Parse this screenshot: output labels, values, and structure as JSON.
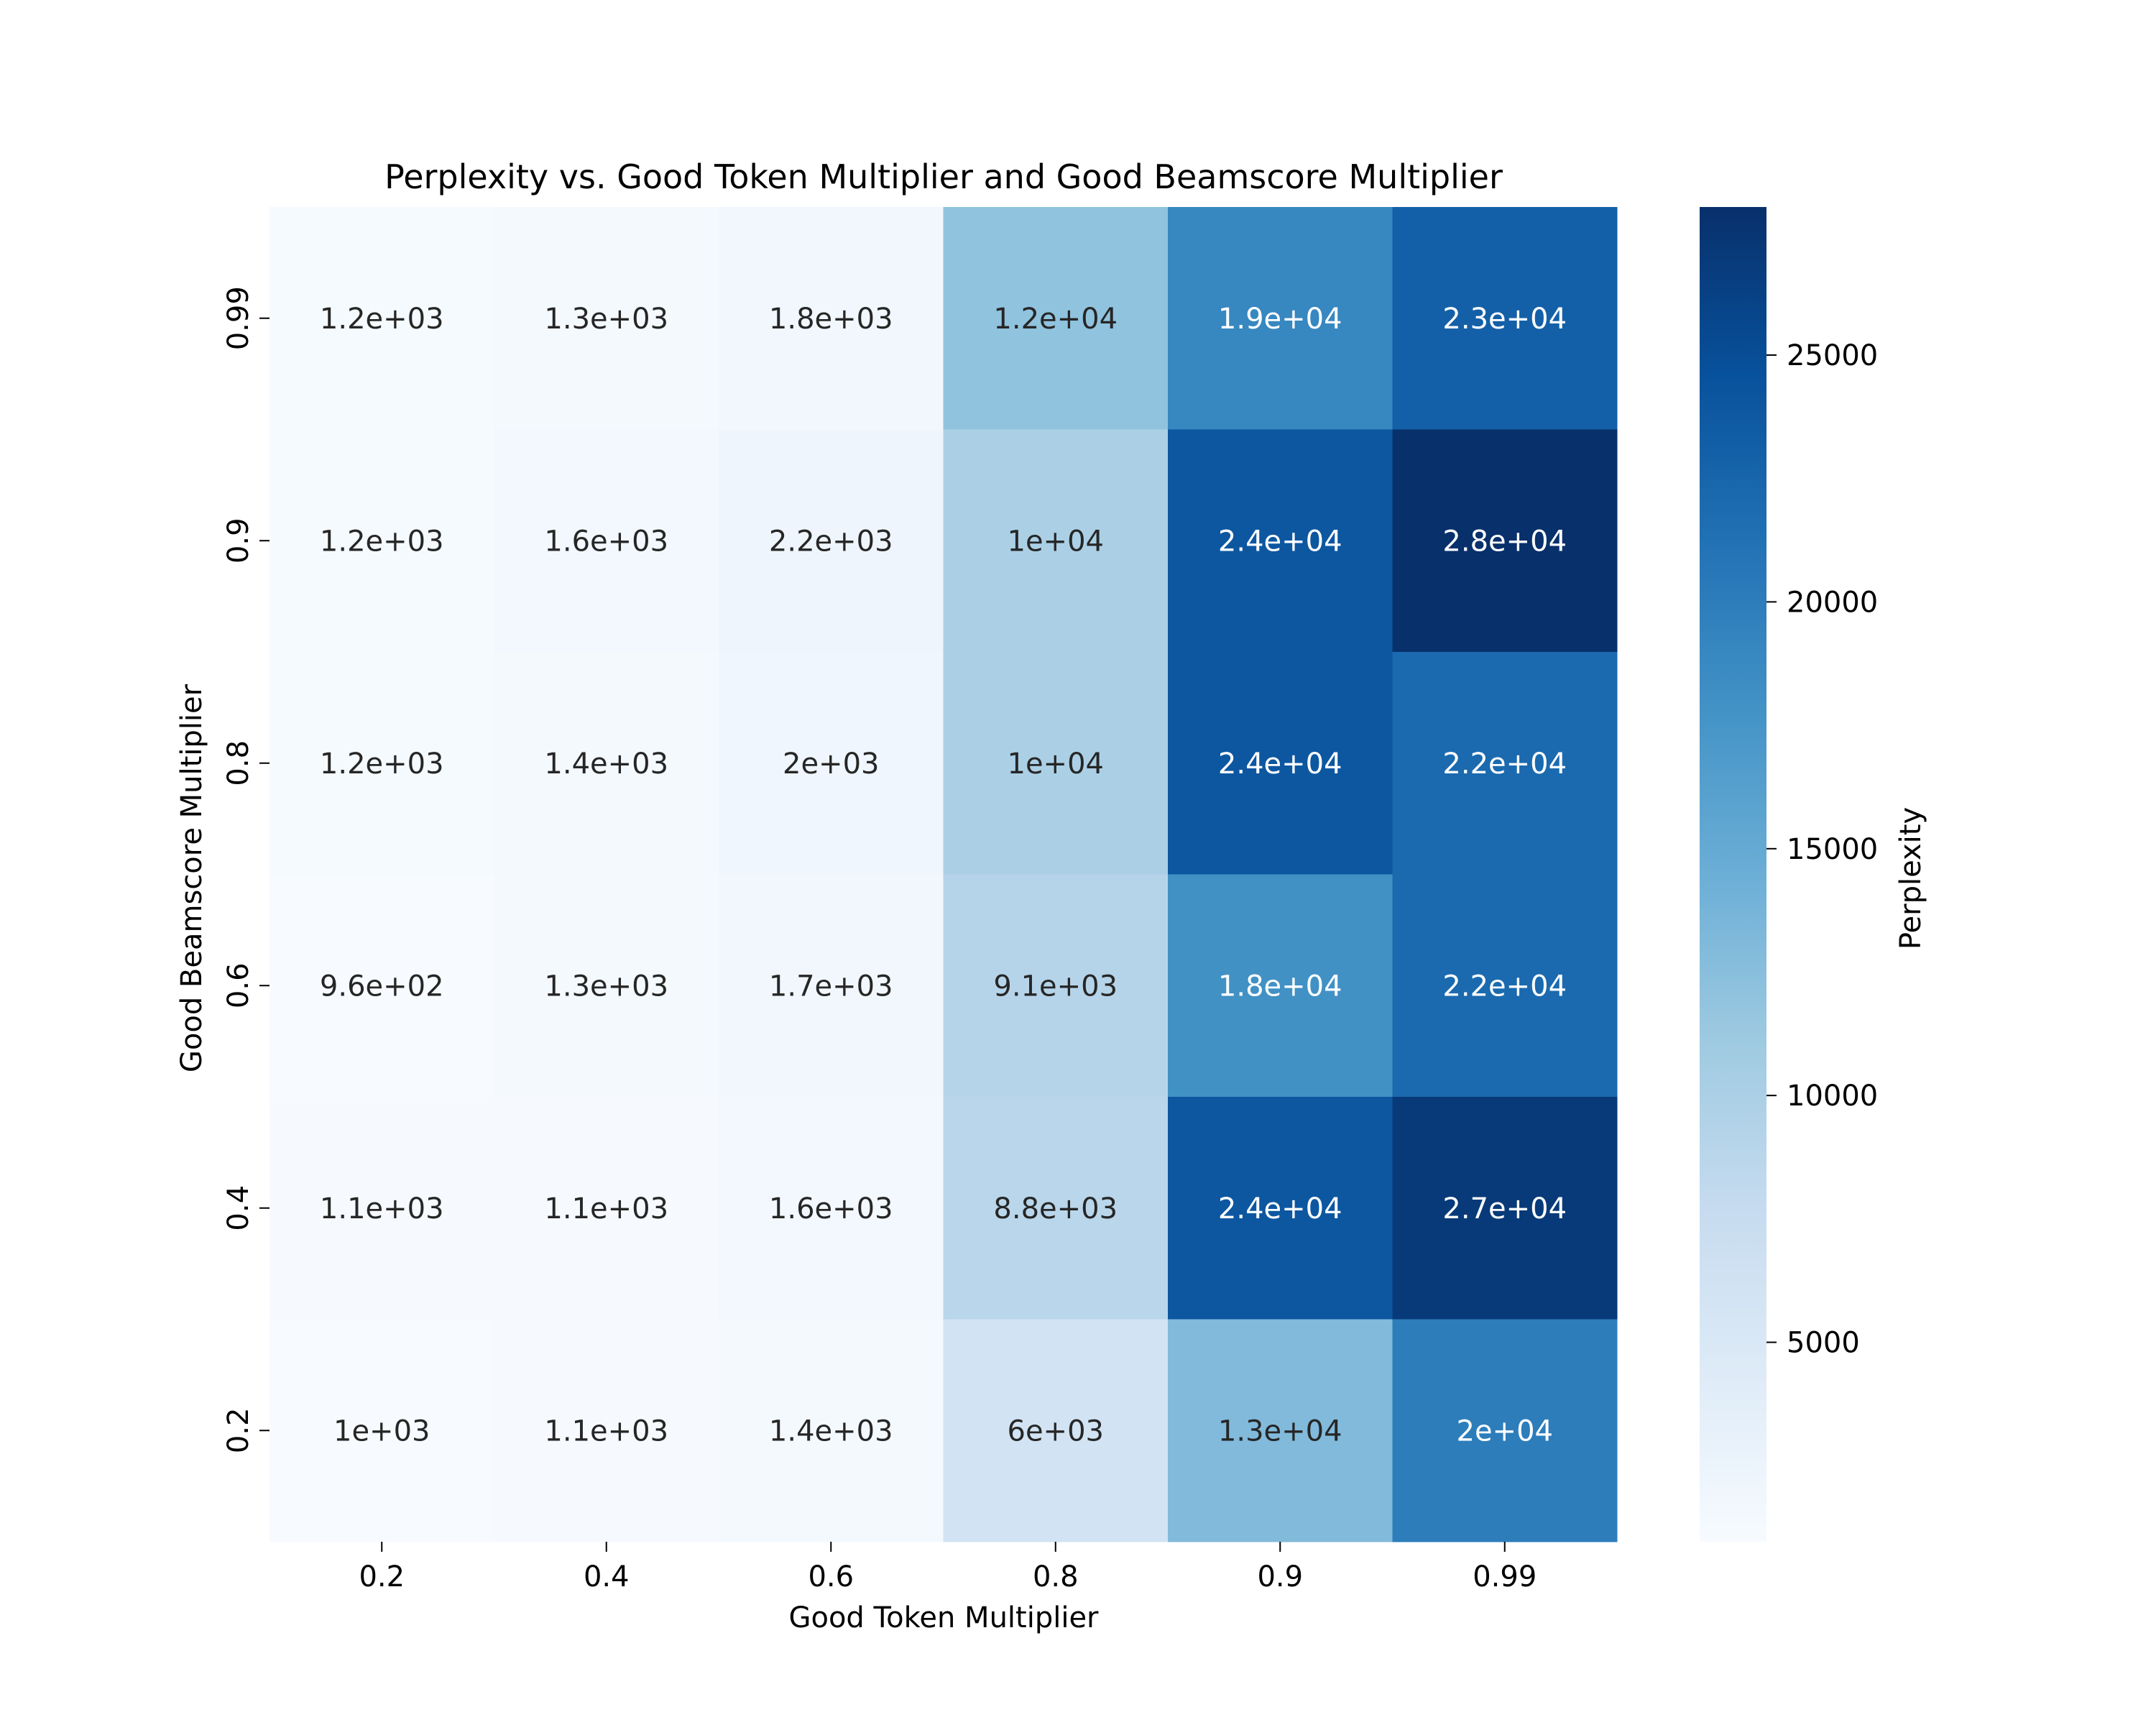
{
  "chart_data": {
    "type": "heatmap",
    "title": "Perplexity vs. Good Token Multiplier and Good Beamscore Multiplier",
    "xlabel": "Good Token Multiplier",
    "ylabel": "Good Beamscore Multiplier",
    "x_categories": [
      "0.2",
      "0.4",
      "0.6",
      "0.8",
      "0.9",
      "0.99"
    ],
    "y_categories": [
      "0.99",
      "0.9",
      "0.8",
      "0.6",
      "0.4",
      "0.2"
    ],
    "values": [
      [
        1200,
        1300,
        1800,
        12000,
        19000,
        23000
      ],
      [
        1200,
        1600,
        2200,
        10000,
        24000,
        28000
      ],
      [
        1200,
        1400,
        2000,
        10000,
        24000,
        22000
      ],
      [
        960,
        1300,
        1700,
        9100,
        18000,
        22000
      ],
      [
        1100,
        1100,
        1600,
        8800,
        24000,
        27000
      ],
      [
        1000,
        1100,
        1400,
        6000,
        13000,
        20000
      ]
    ],
    "cell_labels": [
      [
        "1.2e+03",
        "1.3e+03",
        "1.8e+03",
        "1.2e+04",
        "1.9e+04",
        "2.3e+04"
      ],
      [
        "1.2e+03",
        "1.6e+03",
        "2.2e+03",
        "1e+04",
        "2.4e+04",
        "2.8e+04"
      ],
      [
        "1.2e+03",
        "1.4e+03",
        "2e+03",
        "1e+04",
        "2.4e+04",
        "2.2e+04"
      ],
      [
        "9.6e+02",
        "1.3e+03",
        "1.7e+03",
        "9.1e+03",
        "1.8e+04",
        "2.2e+04"
      ],
      [
        "1.1e+03",
        "1.1e+03",
        "1.6e+03",
        "8.8e+03",
        "2.4e+04",
        "2.7e+04"
      ],
      [
        "1e+03",
        "1.1e+03",
        "1.4e+03",
        "6e+03",
        "1.3e+04",
        "2e+04"
      ]
    ],
    "colorbar": {
      "label": "Perplexity",
      "colormap": "Blues",
      "range": [
        960,
        28000
      ],
      "ticks": [
        5000,
        10000,
        15000,
        20000,
        25000
      ],
      "tick_labels": [
        "5000",
        "10000",
        "15000",
        "20000",
        "25000"
      ]
    }
  }
}
